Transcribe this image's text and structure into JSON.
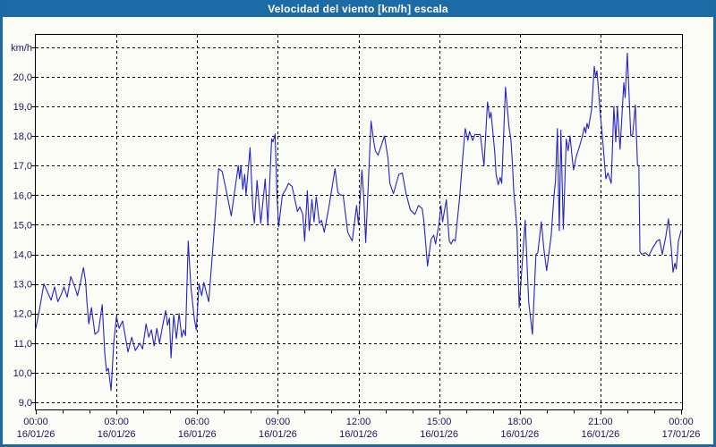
{
  "window": {
    "title": "Velocidad del viento [km/h] escala"
  },
  "colors": {
    "title_bar_bg": "#1d6ba6",
    "window_border": "#1c69a4",
    "page_bg": "#fcfcf7",
    "title_text": "#ffffff",
    "axis_text": "#16165e",
    "grid": "#000000",
    "frame": "#000000",
    "line": "#2323c8"
  },
  "chart_data": {
    "type": "line",
    "title": "Velocidad del viento [km/h] escala",
    "ylabel": "km/h",
    "xlabel": "",
    "ylim": [
      8.75,
      21.45
    ],
    "xlim_hours": [
      0,
      24
    ],
    "grid": "dashed",
    "legend_position": "none",
    "y_gridline_values": [
      9,
      10,
      11,
      12,
      13,
      14,
      15,
      16,
      17,
      18,
      19,
      20,
      21
    ],
    "y_ticks": [
      {
        "value": 9,
        "label": "9,0"
      },
      {
        "value": 10,
        "label": "10,0"
      },
      {
        "value": 11,
        "label": "11,0"
      },
      {
        "value": 12,
        "label": "12,0"
      },
      {
        "value": 13,
        "label": "13,0"
      },
      {
        "value": 14,
        "label": "14,0"
      },
      {
        "value": 15,
        "label": "15,0"
      },
      {
        "value": 16,
        "label": "16,0"
      },
      {
        "value": 17,
        "label": "17,0"
      },
      {
        "value": 18,
        "label": "18,0"
      },
      {
        "value": 19,
        "label": "19,0"
      },
      {
        "value": 20,
        "label": "20,0"
      }
    ],
    "x_ticks": [
      {
        "hour": 0,
        "time": "00:00",
        "date": "16/01/26"
      },
      {
        "hour": 3,
        "time": "03:00",
        "date": "16/01/26"
      },
      {
        "hour": 6,
        "time": "06:00",
        "date": "16/01/26"
      },
      {
        "hour": 9,
        "time": "09:00",
        "date": "16/01/26"
      },
      {
        "hour": 12,
        "time": "12:00",
        "date": "16/01/26"
      },
      {
        "hour": 15,
        "time": "15:00",
        "date": "16/01/26"
      },
      {
        "hour": 18,
        "time": "18:00",
        "date": "16/01/26"
      },
      {
        "hour": 21,
        "time": "21:00",
        "date": "16/01/26"
      },
      {
        "hour": 24,
        "time": "00:00",
        "date": "17/01/26"
      }
    ],
    "x_minor_tick_every_hours": 1,
    "series": [
      {
        "name": "Velocidad del viento [km/h]",
        "color": "#2323c8",
        "points": [
          [
            0.0,
            11.5
          ],
          [
            0.13,
            12.1
          ],
          [
            0.3,
            13.0
          ],
          [
            0.45,
            12.7
          ],
          [
            0.57,
            12.45
          ],
          [
            0.7,
            12.9
          ],
          [
            0.82,
            12.4
          ],
          [
            0.95,
            12.65
          ],
          [
            1.05,
            12.9
          ],
          [
            1.17,
            12.55
          ],
          [
            1.3,
            13.25
          ],
          [
            1.45,
            12.9
          ],
          [
            1.55,
            12.6
          ],
          [
            1.65,
            13.0
          ],
          [
            1.77,
            13.55
          ],
          [
            1.85,
            13.1
          ],
          [
            1.9,
            12.4
          ],
          [
            1.97,
            11.65
          ],
          [
            2.07,
            12.2
          ],
          [
            2.2,
            11.3
          ],
          [
            2.33,
            11.4
          ],
          [
            2.47,
            12.3
          ],
          [
            2.57,
            10.6
          ],
          [
            2.63,
            10.05
          ],
          [
            2.7,
            10.15
          ],
          [
            2.8,
            9.4
          ],
          [
            2.9,
            11.0
          ],
          [
            3.0,
            11.9
          ],
          [
            3.1,
            11.5
          ],
          [
            3.23,
            11.75
          ],
          [
            3.43,
            10.7
          ],
          [
            3.57,
            11.2
          ],
          [
            3.7,
            10.75
          ],
          [
            3.87,
            11.0
          ],
          [
            3.97,
            10.8
          ],
          [
            4.1,
            11.65
          ],
          [
            4.2,
            11.2
          ],
          [
            4.3,
            11.45
          ],
          [
            4.4,
            10.9
          ],
          [
            4.5,
            11.5
          ],
          [
            4.6,
            11.0
          ],
          [
            4.72,
            11.6
          ],
          [
            4.83,
            12.1
          ],
          [
            4.9,
            11.6
          ],
          [
            4.97,
            11.85
          ],
          [
            5.03,
            10.5
          ],
          [
            5.13,
            11.95
          ],
          [
            5.23,
            11.15
          ],
          [
            5.33,
            12.0
          ],
          [
            5.43,
            11.2
          ],
          [
            5.5,
            11.45
          ],
          [
            5.57,
            11.25
          ],
          [
            5.67,
            14.45
          ],
          [
            5.77,
            12.9
          ],
          [
            5.9,
            11.8
          ],
          [
            5.97,
            11.45
          ],
          [
            6.07,
            13.0
          ],
          [
            6.17,
            12.6
          ],
          [
            6.25,
            13.05
          ],
          [
            6.33,
            12.75
          ],
          [
            6.43,
            12.4
          ],
          [
            6.6,
            14.4
          ],
          [
            6.8,
            16.9
          ],
          [
            6.93,
            16.8
          ],
          [
            7.05,
            16.3
          ],
          [
            7.27,
            15.3
          ],
          [
            7.53,
            17.0
          ],
          [
            7.58,
            16.55
          ],
          [
            7.63,
            17.0
          ],
          [
            7.7,
            16.2
          ],
          [
            7.77,
            16.7
          ],
          [
            7.82,
            16.0
          ],
          [
            7.97,
            17.6
          ],
          [
            8.07,
            15.6
          ],
          [
            8.13,
            15.05
          ],
          [
            8.23,
            16.5
          ],
          [
            8.37,
            15.05
          ],
          [
            8.53,
            16.55
          ],
          [
            8.63,
            15.0
          ],
          [
            8.77,
            17.9
          ],
          [
            8.82,
            17.8
          ],
          [
            8.9,
            18.06
          ],
          [
            8.97,
            16.0
          ],
          [
            9.03,
            14.93
          ],
          [
            9.17,
            16.0
          ],
          [
            9.3,
            16.2
          ],
          [
            9.4,
            16.4
          ],
          [
            9.53,
            16.3
          ],
          [
            9.73,
            15.45
          ],
          [
            9.82,
            15.6
          ],
          [
            9.93,
            15.35
          ],
          [
            10.0,
            14.45
          ],
          [
            10.1,
            16.15
          ],
          [
            10.17,
            14.8
          ],
          [
            10.27,
            15.85
          ],
          [
            10.35,
            15.1
          ],
          [
            10.43,
            15.95
          ],
          [
            10.55,
            15.05
          ],
          [
            10.63,
            15.15
          ],
          [
            10.73,
            14.75
          ],
          [
            10.9,
            15.6
          ],
          [
            11.13,
            16.9
          ],
          [
            11.23,
            16.1
          ],
          [
            11.33,
            16.0
          ],
          [
            11.43,
            16.0
          ],
          [
            11.6,
            14.75
          ],
          [
            11.68,
            14.6
          ],
          [
            11.77,
            14.45
          ],
          [
            11.93,
            15.65
          ],
          [
            12.0,
            15.0
          ],
          [
            12.13,
            16.85
          ],
          [
            12.2,
            15.9
          ],
          [
            12.27,
            14.4
          ],
          [
            12.47,
            18.5
          ],
          [
            12.57,
            17.8
          ],
          [
            12.63,
            17.5
          ],
          [
            12.73,
            17.35
          ],
          [
            12.97,
            18.0
          ],
          [
            13.1,
            17.25
          ],
          [
            13.17,
            16.4
          ],
          [
            13.3,
            16.05
          ],
          [
            13.5,
            16.7
          ],
          [
            13.63,
            16.75
          ],
          [
            13.77,
            16.05
          ],
          [
            13.93,
            15.5
          ],
          [
            14.1,
            15.35
          ],
          [
            14.23,
            15.65
          ],
          [
            14.37,
            15.55
          ],
          [
            14.43,
            15.15
          ],
          [
            14.57,
            13.6
          ],
          [
            14.7,
            14.5
          ],
          [
            14.8,
            14.65
          ],
          [
            14.87,
            14.35
          ],
          [
            15.0,
            15.05
          ],
          [
            15.07,
            15.65
          ],
          [
            15.13,
            15.1
          ],
          [
            15.27,
            15.85
          ],
          [
            15.38,
            14.45
          ],
          [
            15.45,
            14.35
          ],
          [
            15.53,
            14.5
          ],
          [
            15.6,
            14.45
          ],
          [
            15.77,
            16.0
          ],
          [
            15.88,
            17.3
          ],
          [
            15.97,
            18.25
          ],
          [
            16.07,
            17.85
          ],
          [
            16.13,
            18.15
          ],
          [
            16.25,
            17.85
          ],
          [
            16.33,
            18.05
          ],
          [
            16.53,
            18.05
          ],
          [
            16.67,
            17.0
          ],
          [
            16.8,
            19.15
          ],
          [
            16.88,
            18.6
          ],
          [
            16.93,
            18.8
          ],
          [
            17.07,
            17.45
          ],
          [
            17.12,
            16.7
          ],
          [
            17.2,
            16.35
          ],
          [
            17.27,
            16.6
          ],
          [
            17.33,
            16.4
          ],
          [
            17.47,
            19.65
          ],
          [
            17.6,
            18.3
          ],
          [
            17.67,
            17.9
          ],
          [
            17.73,
            17.05
          ],
          [
            17.78,
            16.1
          ],
          [
            17.83,
            15.6
          ],
          [
            17.9,
            14.8
          ],
          [
            17.98,
            12.2
          ],
          [
            18.2,
            15.15
          ],
          [
            18.33,
            12.4
          ],
          [
            18.38,
            12.0
          ],
          [
            18.47,
            11.3
          ],
          [
            18.6,
            14.0
          ],
          [
            18.67,
            14.05
          ],
          [
            18.8,
            15.1
          ],
          [
            18.9,
            14.15
          ],
          [
            19.0,
            13.45
          ],
          [
            19.17,
            14.65
          ],
          [
            19.27,
            15.95
          ],
          [
            19.33,
            16.5
          ],
          [
            19.4,
            18.25
          ],
          [
            19.47,
            14.8
          ],
          [
            19.53,
            18.2
          ],
          [
            19.62,
            14.85
          ],
          [
            19.73,
            17.9
          ],
          [
            19.8,
            17.5
          ],
          [
            19.87,
            18.0
          ],
          [
            19.97,
            17.1
          ],
          [
            20.0,
            16.85
          ],
          [
            20.1,
            17.3
          ],
          [
            20.23,
            17.67
          ],
          [
            20.33,
            18.0
          ],
          [
            20.4,
            18.3
          ],
          [
            20.45,
            18.1
          ],
          [
            20.5,
            18.43
          ],
          [
            20.55,
            18.25
          ],
          [
            20.67,
            18.9
          ],
          [
            20.77,
            20.35
          ],
          [
            20.82,
            20.0
          ],
          [
            20.87,
            20.2
          ],
          [
            21.0,
            18.7
          ],
          [
            21.07,
            18.0
          ],
          [
            21.2,
            16.55
          ],
          [
            21.28,
            16.75
          ],
          [
            21.4,
            16.4
          ],
          [
            21.5,
            19.0
          ],
          [
            21.57,
            17.8
          ],
          [
            21.63,
            19.0
          ],
          [
            21.73,
            17.55
          ],
          [
            21.87,
            19.8
          ],
          [
            21.92,
            19.3
          ],
          [
            22.0,
            20.8
          ],
          [
            22.13,
            18.0
          ],
          [
            22.2,
            18.05
          ],
          [
            22.3,
            19.05
          ],
          [
            22.38,
            17.0
          ],
          [
            22.43,
            17.0
          ],
          [
            22.47,
            14.1
          ],
          [
            22.53,
            14.0
          ],
          [
            22.67,
            14.05
          ],
          [
            22.8,
            13.95
          ],
          [
            22.93,
            14.2
          ],
          [
            23.1,
            14.45
          ],
          [
            23.2,
            14.5
          ],
          [
            23.3,
            14.0
          ],
          [
            23.43,
            14.6
          ],
          [
            23.53,
            15.2
          ],
          [
            23.63,
            14.25
          ],
          [
            23.7,
            13.4
          ],
          [
            23.77,
            13.7
          ],
          [
            23.82,
            13.5
          ],
          [
            23.9,
            14.45
          ],
          [
            24.0,
            14.8
          ]
        ]
      }
    ]
  }
}
